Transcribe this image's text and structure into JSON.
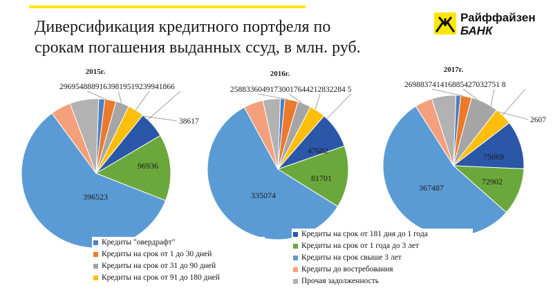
{
  "title": {
    "line1": "Диверсификация кредитного портфеля по",
    "line2": "срокам погашения выданных ссуд, в млн. руб."
  },
  "logo": {
    "line1": "Райффайзен",
    "line2": "БАНК",
    "mark_color": "#fee600"
  },
  "accent_color": "#fee600",
  "chart_data": [
    {
      "type": "pie",
      "title": "2015г.",
      "categories": [
        "Кредиты \"овердрафт\"",
        "Кредиты на срок от 1 до 30 дней",
        "Кредиты на срок от 31 до 90 дней",
        "Кредиты на срок от 91 до 180 дней",
        "Кредиты на срок от 181 дня до 1 года",
        "Кредиты на срок от 1 года до 3 лет",
        "Кредиты на срок свыше 3 лет",
        "Кредиты до востребования",
        "Прочая задолженность"
      ],
      "values": [
        8891,
        16398,
        19519,
        23994,
        38617,
        96936,
        396523,
        29695,
        41866
      ],
      "data_labels": [
        "",
        "",
        "",
        "",
        "",
        "96936",
        "396523",
        "",
        ""
      ],
      "outer_label_row": "29695488891639819519239941866",
      "outer_label_right": "38617"
    },
    {
      "type": "pie",
      "title": "2016г.",
      "categories": [
        "Кредиты \"овердрафт\"",
        "Кредиты на срок от 1 до 30 дней",
        "Кредиты на срок от 31 до 90 дней",
        "Кредиты на срок от 91 до 180 дней",
        "Кредиты на срок от 181 дня до 1 года",
        "Кредиты на срок от 1 года до 3 лет",
        "Кредиты на срок свыше 3 лет",
        "Кредиты до востребования",
        "Прочая задолженность"
      ],
      "values": [
        6049,
        17300,
        17644,
        21283,
        47682,
        81701,
        335074,
        25883,
        22845
      ],
      "data_labels": [
        "",
        "",
        "",
        "",
        "47682",
        "81701",
        "335074",
        "",
        ""
      ],
      "outer_label_row": "25883360491730017644212832284 5"
    },
    {
      "type": "pie",
      "title": "2017г.",
      "categories": [
        "Кредиты \"овердрафт\"",
        "Кредиты на срок от 1 до 30 дней",
        "Кредиты на срок от 31 до 90 дней",
        "Кредиты на срок от 91 до 180 дней",
        "Кредиты на срок от 181 дня до 1 года",
        "Кредиты на срок от 1 года до 3 лет",
        "Кредиты на срок свыше 3 лет",
        "Кредиты до востребования",
        "Прочая задолженность"
      ],
      "values": [
        7414,
        16885,
        42703,
        27518,
        75069,
        72902,
        367487,
        26988,
        37414
      ],
      "data_labels": [
        "",
        "",
        "",
        "",
        "75069",
        "72902",
        "367487",
        "",
        ""
      ],
      "outer_label_row": "269883741416885427032751 8",
      "outer_label_right": "2607"
    }
  ],
  "legend": {
    "left": [
      {
        "label": "Кредиты \"овердрафт\"",
        "color": "#4f7fc0"
      },
      {
        "label": "Кредиты на срок от 1 до 30 дней",
        "color": "#ec7a2c"
      },
      {
        "label": "Кредиты на срок от 31 до 90 дней",
        "color": "#a5a5a5"
      },
      {
        "label": "Кредиты на срок от 91 до 180 дней",
        "color": "#fdbf0b"
      }
    ],
    "right": [
      {
        "label": "Кредиты на срок от 181 дня до 1 года",
        "color": "#2b57a8"
      },
      {
        "label": "Кредиты на срок от 1 года до 3 лет",
        "color": "#6aa83b"
      },
      {
        "label": "Кредиты на срок свыше 3 лет",
        "color": "#5b9bd5"
      },
      {
        "label": "Кредиты до востребования",
        "color": "#f4a07c"
      },
      {
        "label": "Прочая задолженность",
        "color": "#b2b2b2"
      }
    ]
  },
  "slice_colors": [
    "#4f7fc0",
    "#ec7a2c",
    "#a5a5a5",
    "#fdbf0b",
    "#2b57a8",
    "#6aa83b",
    "#5b9bd5",
    "#f4a07c",
    "#b2b2b2"
  ]
}
